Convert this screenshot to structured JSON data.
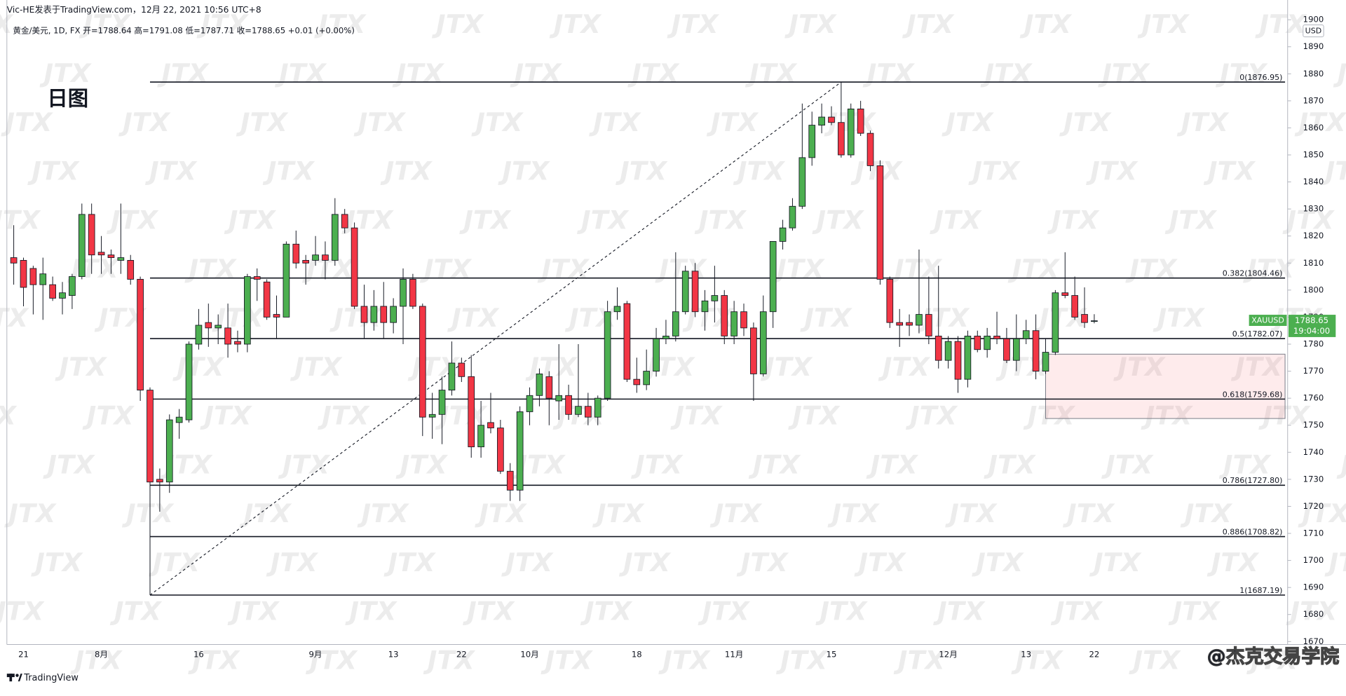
{
  "header": "Vic-HE发表于TradingView.com，12月 22, 2021 10:56 UTC+8",
  "footer": "TradingView",
  "signature": "@杰克交易学院",
  "chart_data": {
    "type": "candlestick",
    "title": "日图",
    "legend": "黄金/美元, 1D, FX  开=1788.64  高=1791.08  低=1787.71  收=1788.65  +0.01 (+0.00%)",
    "currency": "USD",
    "watermark": "JTX",
    "symbol": "XAUUSD",
    "last_price": 1788.65,
    "countdown": "19:04:00",
    "up_color": "#4caf50",
    "down_color": "#f23645",
    "grid": false,
    "ylim": [
      1668.9,
      1907.3
    ],
    "yticks": [
      1670,
      1680,
      1690,
      1700,
      1710,
      1720,
      1730,
      1740,
      1750,
      1760,
      1770,
      1780,
      1790,
      1800,
      1810,
      1820,
      1830,
      1840,
      1850,
      1860,
      1870,
      1880,
      1890,
      1900
    ],
    "categories": [
      null,
      "21",
      null,
      null,
      null,
      null,
      null,
      null,
      null,
      "8月",
      null,
      null,
      null,
      null,
      null,
      null,
      null,
      null,
      null,
      "16",
      null,
      null,
      null,
      null,
      null,
      null,
      null,
      null,
      null,
      null,
      null,
      "9月",
      null,
      null,
      null,
      null,
      null,
      null,
      null,
      "13",
      null,
      null,
      null,
      null,
      null,
      null,
      "22",
      null,
      null,
      null,
      null,
      null,
      null,
      "10月",
      null,
      null,
      null,
      null,
      null,
      null,
      null,
      null,
      null,
      null,
      "18",
      null,
      null,
      null,
      null,
      null,
      null,
      null,
      null,
      null,
      "11月",
      null,
      null,
      null,
      null,
      null,
      null,
      null,
      null,
      null,
      "15",
      null,
      null,
      null,
      null,
      null,
      null,
      null,
      null,
      null,
      null,
      null,
      "12月",
      null,
      null,
      null,
      null,
      null,
      null,
      null,
      "13",
      null,
      null,
      null,
      null,
      null,
      null,
      "22"
    ],
    "open": [
      1812,
      1811,
      1808,
      1802,
      1802,
      1797,
      1798,
      1805,
      1828,
      1814,
      1813,
      1811,
      1811,
      1804,
      1763,
      1730,
      1729,
      1751,
      1752,
      1780,
      1788,
      1786,
      1786,
      1781,
      1780,
      1805,
      1803,
      1791,
      1790,
      1817,
      1811,
      1811,
      1813,
      1811,
      1828,
      1823,
      1794,
      1788,
      1794,
      1788,
      1794,
      1804,
      1794,
      1753,
      1754,
      1763,
      1773,
      1768,
      1742,
      1751,
      1749,
      1733,
      1726,
      1755,
      1761,
      1768,
      1759,
      1761,
      1754,
      1757,
      1753,
      1760,
      1792,
      1795,
      1767,
      1765,
      1770,
      1782,
      1783,
      1792,
      1807,
      1792,
      1796,
      1798,
      1783,
      1792,
      1786,
      1769,
      1792,
      1818,
      1823,
      1831,
      1849,
      1861,
      1864,
      1862,
      1850,
      1867,
      1858,
      1846,
      1804,
      1788,
      1788,
      1787,
      1791,
      1783,
      1774,
      1781,
      1767,
      1783,
      1778,
      1783,
      1782,
      1774,
      1782,
      1785,
      1770,
      1777,
      1799,
      1798,
      1791,
      1788.64
    ],
    "high": [
      1824,
      1812,
      1809,
      1812,
      1805,
      1803,
      1806,
      1832,
      1832,
      1820,
      1815,
      1832,
      1813,
      1805,
      1764,
      1734,
      1754,
      1756,
      1781,
      1793,
      1795,
      1791,
      1795,
      1785,
      1806,
      1808,
      1804,
      1798,
      1818,
      1822,
      1813,
      1820,
      1818,
      1834,
      1830,
      1825,
      1802,
      1800,
      1803,
      1797,
      1808,
      1806,
      1795,
      1762,
      1768,
      1781,
      1775,
      1776,
      1759,
      1762,
      1752,
      1736,
      1757,
      1764,
      1771,
      1770,
      1780,
      1765,
      1780,
      1762,
      1761,
      1796,
      1801,
      1796,
      1775,
      1778,
      1786,
      1789,
      1814,
      1809,
      1810,
      1800,
      1809,
      1800,
      1796,
      1795,
      1788,
      1798,
      1818,
      1826,
      1834,
      1869,
      1866,
      1869,
      1868,
      1877,
      1869,
      1870,
      1859,
      1848,
      1805,
      1793,
      1791,
      1815,
      1805,
      1809,
      1783,
      1783,
      1785,
      1785,
      1786,
      1792,
      1786,
      1791,
      1789,
      1791,
      1782,
      1800,
      1814,
      1805,
      1801,
      1791.08
    ],
    "low": [
      1802,
      1794,
      1791,
      1789,
      1796,
      1791,
      1793,
      1804,
      1806,
      1806,
      1806,
      1806,
      1802,
      1759,
      1687.2,
      1718,
      1725,
      1745,
      1751,
      1778,
      1779,
      1780,
      1775,
      1777,
      1777,
      1796,
      1789,
      1782,
      1790,
      1808,
      1802,
      1809,
      1804,
      1809,
      1821,
      1793,
      1782,
      1785,
      1782,
      1784,
      1780,
      1793,
      1746,
      1745,
      1743,
      1761,
      1766,
      1738,
      1738,
      1747,
      1732,
      1722,
      1722,
      1750,
      1757,
      1750,
      1752,
      1752,
      1753,
      1750,
      1750,
      1759,
      1789,
      1766,
      1762,
      1763,
      1768,
      1780,
      1781,
      1791,
      1790,
      1785,
      1788,
      1780,
      1780,
      1783,
      1759,
      1768,
      1786,
      1815,
      1822,
      1830,
      1846,
      1858,
      1861,
      1849,
      1849,
      1857,
      1844,
      1802,
      1786,
      1779,
      1783,
      1784,
      1780,
      1771,
      1771,
      1762,
      1764,
      1777,
      1775,
      1780,
      1773,
      1770,
      1780,
      1767,
      1769,
      1776,
      1797,
      1789,
      1786,
      1787.71
    ],
    "close": [
      1810,
      1801,
      1802,
      1806,
      1797,
      1799,
      1805,
      1828,
      1813,
      1813,
      1812,
      1812,
      1804,
      1763,
      1729,
      1729,
      1752,
      1753,
      1780,
      1787,
      1786,
      1787,
      1780,
      1780,
      1805,
      1804,
      1790,
      1790,
      1817,
      1810,
      1810,
      1813,
      1811,
      1828,
      1823,
      1794,
      1788,
      1794,
      1788,
      1794,
      1804,
      1794,
      1753,
      1754,
      1763,
      1773,
      1768,
      1742,
      1750,
      1749,
      1733,
      1726,
      1755,
      1761,
      1769,
      1760,
      1761,
      1754,
      1757,
      1753,
      1760,
      1792,
      1794,
      1767,
      1765,
      1770,
      1782,
      1783,
      1792,
      1807,
      1792,
      1796,
      1798,
      1783,
      1792,
      1786,
      1769,
      1792,
      1818,
      1823,
      1831,
      1849,
      1861,
      1864,
      1862,
      1850,
      1867,
      1858,
      1846,
      1804,
      1788,
      1787,
      1787,
      1791,
      1783,
      1774,
      1781,
      1767,
      1783,
      1778,
      1783,
      1782,
      1774,
      1782,
      1785,
      1770,
      1777,
      1799,
      1798,
      1790,
      1788,
      1788.65
    ],
    "fib_levels": [
      {
        "value": 1876.95,
        "label": "0(1876.95)"
      },
      {
        "value": 1804.46,
        "label": "0.382(1804.46)"
      },
      {
        "value": 1782.07,
        "label": "0.5(1782.07)"
      },
      {
        "value": 1759.68,
        "label": "0.618(1759.68)"
      },
      {
        "value": 1727.8,
        "label": "0.786(1727.80)"
      },
      {
        "value": 1708.82,
        "label": "0.886(1708.82)"
      },
      {
        "value": 1687.19,
        "label": "1(1687.19)"
      }
    ],
    "zone": [
      1752.5,
      1776.3
    ]
  }
}
